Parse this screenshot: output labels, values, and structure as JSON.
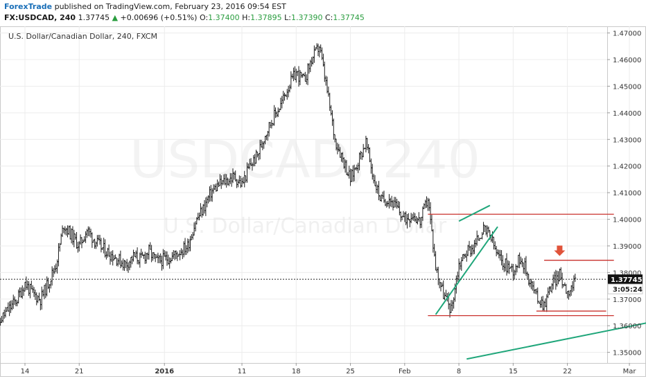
{
  "header": {
    "author": "ForexTrade",
    "published": " published on TradingView.com, February 23, 2016 09:54 EST",
    "symbol": "FX:USDCAD, 240",
    "last": " 1.37745 ",
    "change_arrow": "▲",
    "change": " +0.00696 (+0.51%) ",
    "o_label": "O:",
    "o_value": "1.37400",
    "h_label": " H:",
    "h_value": "1.37895",
    "l_label": " L:",
    "l_value": "1.37390",
    "c_label": " C:",
    "c_value": "1.37745"
  },
  "chart_data": {
    "type": "ohlc",
    "title": "U.S. Dollar/Canadian Dollar, 240, FXCM",
    "watermark_symbol": "USDCAD, 240",
    "watermark_name": "U.S. Dollar/Canadian Dollar",
    "ylim": [
      1.346,
      1.4725
    ],
    "y_ticks": [
      "1.35000",
      "1.36000",
      "1.37000",
      "1.38000",
      "1.39000",
      "1.40000",
      "1.41000",
      "1.42000",
      "1.43000",
      "1.44000",
      "1.45000",
      "1.46000",
      "1.47000"
    ],
    "x_ticks": [
      {
        "label": "14",
        "date": "2015-12-14",
        "bold": false
      },
      {
        "label": "21",
        "date": "2015-12-21",
        "bold": false
      },
      {
        "label": "2016",
        "date": "2016-01-01",
        "bold": true
      },
      {
        "label": "11",
        "date": "2016-01-11",
        "bold": false
      },
      {
        "label": "18",
        "date": "2016-01-18",
        "bold": false
      },
      {
        "label": "25",
        "date": "2016-01-25",
        "bold": false
      },
      {
        "label": "Feb",
        "date": "2016-02-01",
        "bold": false
      },
      {
        "label": "8",
        "date": "2016-02-08",
        "bold": false
      },
      {
        "label": "15",
        "date": "2016-02-15",
        "bold": false
      },
      {
        "label": "22",
        "date": "2016-02-22",
        "bold": false
      },
      {
        "label": "Mar",
        "date": "2016-03-01",
        "bold": false
      }
    ],
    "last_price": "1.37745",
    "last_price_value": 1.37745,
    "countdown": "3:05:24",
    "price_path": [
      [
        "2015-12-10",
        1.354
      ],
      [
        "2015-12-11",
        1.363
      ],
      [
        "2015-12-13",
        1.37
      ],
      [
        "2015-12-14",
        1.376
      ],
      [
        "2015-12-15",
        1.372
      ],
      [
        "2015-12-16",
        1.37
      ],
      [
        "2015-12-17",
        1.376
      ],
      [
        "2015-12-18",
        1.383
      ],
      [
        "2015-12-19",
        1.398
      ],
      [
        "2015-12-21",
        1.39
      ],
      [
        "2015-12-22",
        1.396
      ],
      [
        "2015-12-23",
        1.392
      ],
      [
        "2015-12-24",
        1.389
      ],
      [
        "2015-12-27",
        1.383
      ],
      [
        "2015-12-28",
        1.386
      ],
      [
        "2015-12-29",
        1.385
      ],
      [
        "2015-12-30",
        1.388
      ],
      [
        "2015-12-31",
        1.384
      ],
      [
        "2016-01-02",
        1.386
      ],
      [
        "2016-01-04",
        1.39
      ],
      [
        "2016-01-05",
        1.399
      ],
      [
        "2016-01-06",
        1.404
      ],
      [
        "2016-01-07",
        1.41
      ],
      [
        "2016-01-08",
        1.413
      ],
      [
        "2016-01-10",
        1.416
      ],
      [
        "2016-01-11",
        1.413
      ],
      [
        "2016-01-12",
        1.42
      ],
      [
        "2016-01-13",
        1.424
      ],
      [
        "2016-01-14",
        1.432
      ],
      [
        "2016-01-15",
        1.438
      ],
      [
        "2016-01-16",
        1.443
      ],
      [
        "2016-01-17",
        1.45
      ],
      [
        "2016-01-18",
        1.455
      ],
      [
        "2016-01-19",
        1.452
      ],
      [
        "2016-01-20",
        1.46
      ],
      [
        "2016-01-21",
        1.465
      ],
      [
        "2016-01-22",
        1.448
      ],
      [
        "2016-01-23",
        1.43
      ],
      [
        "2016-01-24",
        1.423
      ],
      [
        "2016-01-25",
        1.415
      ],
      [
        "2016-01-26",
        1.422
      ],
      [
        "2016-01-27",
        1.429
      ],
      [
        "2016-01-28",
        1.415
      ],
      [
        "2016-01-29",
        1.407
      ],
      [
        "2016-01-30",
        1.408
      ],
      [
        "2016-02-01",
        1.4
      ],
      [
        "2016-02-02",
        1.402
      ],
      [
        "2016-02-03",
        1.399
      ],
      [
        "2016-02-04",
        1.408
      ],
      [
        "2016-02-05",
        1.382
      ],
      [
        "2016-02-06",
        1.372
      ],
      [
        "2016-02-07",
        1.366
      ],
      [
        "2016-02-08",
        1.383
      ],
      [
        "2016-02-09",
        1.388
      ],
      [
        "2016-02-10",
        1.39
      ],
      [
        "2016-02-11",
        1.396
      ],
      [
        "2016-02-12",
        1.394
      ],
      [
        "2016-02-13",
        1.386
      ],
      [
        "2016-02-14",
        1.383
      ],
      [
        "2016-02-15",
        1.381
      ],
      [
        "2016-02-16",
        1.386
      ],
      [
        "2016-02-17",
        1.378
      ],
      [
        "2016-02-18",
        1.371
      ],
      [
        "2016-02-19",
        1.368
      ],
      [
        "2016-02-20",
        1.376
      ],
      [
        "2016-02-21",
        1.379
      ],
      [
        "2016-02-22",
        1.373
      ],
      [
        "2016-02-23",
        1.376
      ]
    ],
    "annotations": {
      "red_lines": [
        {
          "y": 1.4019,
          "x1": "2016-02-04",
          "x2": "2016-02-28"
        },
        {
          "y": 1.3846,
          "x1": "2016-02-19",
          "x2": "2016-02-28"
        },
        {
          "y": 1.3655,
          "x1": "2016-02-18",
          "x2": "2016-02-27"
        },
        {
          "y": 1.3638,
          "x1": "2016-02-04",
          "x2": "2016-02-28"
        }
      ],
      "green_lines": [
        {
          "x1": "2016-02-05",
          "y1": 1.3642,
          "x2": "2016-02-13",
          "y2": 1.3972
        },
        {
          "x1": "2016-02-08",
          "y1": 1.3993,
          "x2": "2016-02-12",
          "y2": 1.4052
        },
        {
          "x1": "2016-02-09",
          "y1": 1.3475,
          "x2": "2016-03-04",
          "y2": 1.3615
        }
      ],
      "arrow": {
        "x": "2016-02-21",
        "y": 1.3875
      }
    },
    "colors": {
      "bars": "#1a1a1a",
      "red_line": "#c9302c",
      "green_line": "#1fa67a",
      "arrow": "#e0533a",
      "price_label_bg": "#111111",
      "grid": "#ececec"
    }
  }
}
